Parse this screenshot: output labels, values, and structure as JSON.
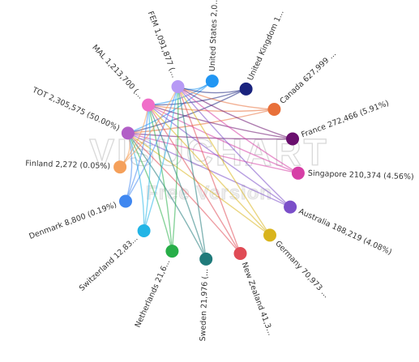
{
  "chart_data": {
    "type": "chord-network",
    "title": "",
    "nodes": [
      {
        "id": "US",
        "label": "United States 2,0...",
        "color": "#2196f3"
      },
      {
        "id": "UK",
        "label": "United Kingdom 1...",
        "color": "#1a237e"
      },
      {
        "id": "CA",
        "label": "Canada 627,999 ...",
        "color": "#e8703a"
      },
      {
        "id": "FR",
        "label": "France 272,466 (5.91%)",
        "color": "#6a0f6e"
      },
      {
        "id": "SG",
        "label": "Singapore 210,374 (4.56%)",
        "color": "#d63fa6"
      },
      {
        "id": "AU",
        "label": "Australia 188,219 (4.08%)",
        "color": "#7b4fc9"
      },
      {
        "id": "DE",
        "label": "Germany 70,973 ...",
        "color": "#d9b41c"
      },
      {
        "id": "NZ",
        "label": "New Zealand 41,3...",
        "color": "#e04b55"
      },
      {
        "id": "SE",
        "label": "Sweden 21,976 (...",
        "color": "#1f7a7a"
      },
      {
        "id": "NL",
        "label": "Netherlands 21,6...",
        "color": "#27ae48"
      },
      {
        "id": "CH",
        "label": "Switzerland 12,83...",
        "color": "#22b5e6"
      },
      {
        "id": "DK",
        "label": "Denmark 8,800 (0.19%)",
        "color": "#3f87f0"
      },
      {
        "id": "FI",
        "label": "Finland 2,272 (0.05%)",
        "color": "#f5a05a"
      },
      {
        "id": "TOT",
        "label": "TOT 2,305,575 (50.00%)",
        "color": "#b25fc7"
      },
      {
        "id": "MAL",
        "label": "MAL 1,213,700 (...",
        "color": "#f06ec9"
      },
      {
        "id": "FEM",
        "label": "FEM 1,091,877 (...",
        "color": "#b79af5"
      }
    ],
    "links": [
      [
        "TOT",
        "US"
      ],
      [
        "TOT",
        "UK"
      ],
      [
        "TOT",
        "CA"
      ],
      [
        "TOT",
        "FR"
      ],
      [
        "TOT",
        "SG"
      ],
      [
        "TOT",
        "AU"
      ],
      [
        "TOT",
        "DE"
      ],
      [
        "TOT",
        "NZ"
      ],
      [
        "TOT",
        "SE"
      ],
      [
        "TOT",
        "NL"
      ],
      [
        "TOT",
        "CH"
      ],
      [
        "TOT",
        "DK"
      ],
      [
        "TOT",
        "FI"
      ],
      [
        "MAL",
        "US"
      ],
      [
        "MAL",
        "UK"
      ],
      [
        "MAL",
        "CA"
      ],
      [
        "MAL",
        "FR"
      ],
      [
        "MAL",
        "SG"
      ],
      [
        "MAL",
        "AU"
      ],
      [
        "MAL",
        "DE"
      ],
      [
        "MAL",
        "NZ"
      ],
      [
        "MAL",
        "SE"
      ],
      [
        "MAL",
        "NL"
      ],
      [
        "MAL",
        "CH"
      ],
      [
        "MAL",
        "DK"
      ],
      [
        "MAL",
        "FI"
      ],
      [
        "FEM",
        "US"
      ],
      [
        "FEM",
        "UK"
      ],
      [
        "FEM",
        "CA"
      ],
      [
        "FEM",
        "FR"
      ],
      [
        "FEM",
        "SG"
      ],
      [
        "FEM",
        "AU"
      ],
      [
        "FEM",
        "DE"
      ],
      [
        "FEM",
        "NZ"
      ],
      [
        "FEM",
        "SE"
      ],
      [
        "FEM",
        "NL"
      ],
      [
        "FEM",
        "CH"
      ],
      [
        "FEM",
        "DK"
      ],
      [
        "FEM",
        "FI"
      ]
    ]
  },
  "watermark": {
    "main": "VISUCHART",
    "sub": "Free Version"
  }
}
